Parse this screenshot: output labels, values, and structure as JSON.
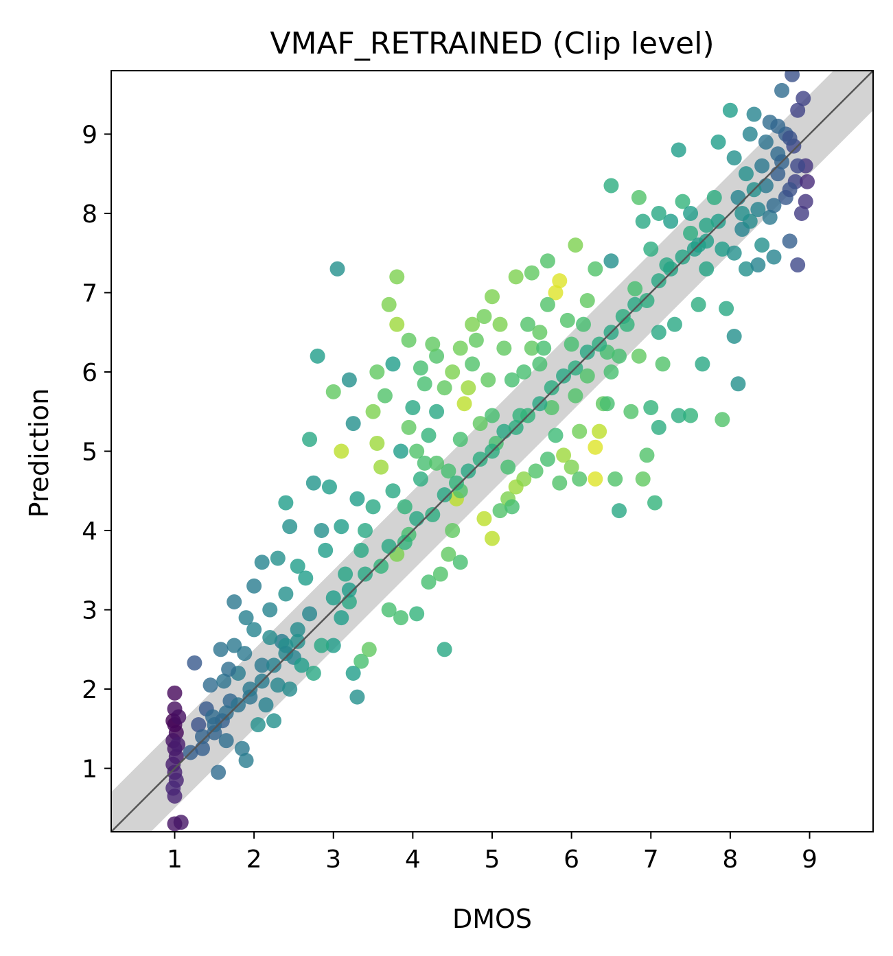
{
  "chart_data": {
    "type": "scatter",
    "title": "VMAF_RETRAINED (Clip level)",
    "xlabel": "DMOS",
    "ylabel": "Prediction",
    "xlim": [
      0.2,
      9.8
    ],
    "ylim": [
      0.2,
      9.8
    ],
    "xticks": [
      1,
      2,
      3,
      4,
      5,
      6,
      7,
      8,
      9
    ],
    "yticks": [
      1,
      2,
      3,
      4,
      5,
      6,
      7,
      8,
      9
    ],
    "xtick_labels": [
      "1",
      "2",
      "3",
      "4",
      "5",
      "6",
      "7",
      "8",
      "9"
    ],
    "ytick_labels": [
      "1",
      "2",
      "3",
      "4",
      "5",
      "6",
      "7",
      "8",
      "9"
    ],
    "grid": false,
    "colormap": "viridis",
    "point_alpha": 0.8,
    "identity_line": {
      "slope": 1,
      "intercept": 0,
      "color": "#555555"
    },
    "confidence_band": {
      "half_width": 0.5,
      "color": "#d3d3d3"
    },
    "points": [
      [
        1.0,
        1.95,
        0.02
      ],
      [
        1.0,
        1.75,
        0.03
      ],
      [
        0.98,
        1.6,
        0.0
      ],
      [
        1.0,
        1.55,
        0.01
      ],
      [
        1.02,
        1.45,
        0.02
      ],
      [
        0.98,
        1.35,
        0.05
      ],
      [
        1.0,
        1.25,
        0.06
      ],
      [
        1.02,
        1.15,
        0.07
      ],
      [
        0.98,
        1.05,
        0.08
      ],
      [
        1.0,
        0.95,
        0.09
      ],
      [
        1.02,
        0.85,
        0.1
      ],
      [
        0.98,
        0.75,
        0.11
      ],
      [
        1.0,
        0.65,
        0.1
      ],
      [
        1.0,
        0.3,
        0.05
      ],
      [
        1.08,
        0.32,
        0.06
      ],
      [
        1.05,
        1.65,
        0.04
      ],
      [
        1.04,
        1.3,
        0.08
      ],
      [
        1.25,
        2.33,
        0.28
      ],
      [
        1.3,
        1.55,
        0.25
      ],
      [
        1.35,
        1.25,
        0.3
      ],
      [
        1.4,
        1.75,
        0.28
      ],
      [
        1.45,
        2.05,
        0.35
      ],
      [
        1.5,
        1.45,
        0.32
      ],
      [
        1.55,
        0.95,
        0.35
      ],
      [
        1.6,
        1.6,
        0.3
      ],
      [
        1.62,
        2.1,
        0.38
      ],
      [
        1.65,
        1.35,
        0.36
      ],
      [
        1.7,
        1.85,
        0.33
      ],
      [
        1.75,
        2.55,
        0.4
      ],
      [
        1.58,
        2.5,
        0.38
      ],
      [
        1.8,
        2.2,
        0.42
      ],
      [
        1.85,
        1.25,
        0.4
      ],
      [
        1.9,
        1.1,
        0.42
      ],
      [
        1.95,
        1.9,
        0.38
      ],
      [
        2.0,
        2.75,
        0.45
      ],
      [
        2.05,
        1.55,
        0.5
      ],
      [
        2.1,
        2.3,
        0.4
      ],
      [
        2.15,
        1.8,
        0.44
      ],
      [
        2.2,
        3.0,
        0.45
      ],
      [
        2.25,
        1.6,
        0.5
      ],
      [
        2.3,
        2.05,
        0.46
      ],
      [
        2.35,
        2.6,
        0.42
      ],
      [
        2.4,
        3.2,
        0.5
      ],
      [
        2.45,
        2.0,
        0.48
      ],
      [
        2.5,
        2.4,
        0.45
      ],
      [
        1.75,
        3.1,
        0.4
      ],
      [
        2.0,
        3.3,
        0.42
      ],
      [
        2.1,
        3.6,
        0.45
      ],
      [
        1.9,
        2.9,
        0.43
      ],
      [
        1.48,
        1.65,
        0.35
      ],
      [
        1.68,
        2.25,
        0.36
      ],
      [
        1.88,
        2.45,
        0.4
      ],
      [
        2.2,
        2.65,
        0.48
      ],
      [
        2.4,
        2.55,
        0.5
      ],
      [
        2.55,
        2.75,
        0.48
      ],
      [
        2.7,
        2.95,
        0.46
      ],
      [
        2.75,
        2.2,
        0.6
      ],
      [
        2.3,
        3.65,
        0.5
      ],
      [
        2.45,
        4.05,
        0.5
      ],
      [
        2.55,
        3.55,
        0.55
      ],
      [
        2.65,
        3.4,
        0.55
      ],
      [
        2.75,
        4.6,
        0.52
      ],
      [
        2.8,
        6.2,
        0.55
      ],
      [
        2.85,
        4.0,
        0.5
      ],
      [
        2.9,
        3.75,
        0.55
      ],
      [
        2.95,
        4.55,
        0.55
      ],
      [
        3.05,
        7.3,
        0.5
      ],
      [
        3.1,
        4.05,
        0.55
      ],
      [
        3.2,
        5.9,
        0.5
      ],
      [
        3.25,
        5.35,
        0.5
      ],
      [
        3.3,
        4.4,
        0.55
      ],
      [
        3.3,
        1.9,
        0.5
      ],
      [
        3.25,
        2.2,
        0.55
      ],
      [
        3.35,
        2.35,
        0.7
      ],
      [
        3.45,
        2.5,
        0.75
      ],
      [
        3.0,
        2.55,
        0.55
      ],
      [
        3.1,
        2.9,
        0.55
      ],
      [
        3.2,
        3.1,
        0.6
      ],
      [
        3.15,
        3.45,
        0.58
      ],
      [
        3.35,
        3.75,
        0.6
      ],
      [
        3.4,
        4.0,
        0.6
      ],
      [
        3.5,
        4.3,
        0.6
      ],
      [
        3.0,
        5.75,
        0.75
      ],
      [
        3.1,
        5.0,
        0.9
      ],
      [
        2.7,
        5.15,
        0.6
      ],
      [
        2.4,
        4.35,
        0.55
      ],
      [
        3.5,
        5.5,
        0.8
      ],
      [
        3.55,
        5.1,
        0.85
      ],
      [
        3.6,
        4.8,
        0.85
      ],
      [
        3.7,
        6.85,
        0.8
      ],
      [
        3.8,
        7.2,
        0.8
      ],
      [
        3.8,
        6.6,
        0.85
      ],
      [
        3.75,
        6.1,
        0.55
      ],
      [
        3.85,
        5.0,
        0.55
      ],
      [
        3.75,
        4.5,
        0.6
      ],
      [
        3.8,
        3.7,
        0.8
      ],
      [
        3.7,
        3.0,
        0.7
      ],
      [
        3.85,
        2.9,
        0.7
      ],
      [
        4.05,
        2.95,
        0.65
      ],
      [
        4.4,
        2.5,
        0.6
      ],
      [
        3.95,
        3.95,
        0.7
      ],
      [
        3.9,
        4.3,
        0.65
      ],
      [
        4.1,
        4.65,
        0.62
      ],
      [
        4.0,
        5.55,
        0.6
      ],
      [
        4.2,
        5.2,
        0.65
      ],
      [
        4.3,
        5.5,
        0.6
      ],
      [
        4.1,
        6.05,
        0.7
      ],
      [
        4.3,
        6.2,
        0.72
      ],
      [
        4.4,
        5.8,
        0.75
      ],
      [
        4.2,
        3.35,
        0.7
      ],
      [
        4.35,
        3.45,
        0.72
      ],
      [
        4.45,
        3.7,
        0.75
      ],
      [
        4.6,
        3.6,
        0.7
      ],
      [
        4.5,
        4.0,
        0.75
      ],
      [
        4.55,
        4.4,
        0.9
      ],
      [
        4.45,
        4.75,
        0.7
      ],
      [
        4.6,
        4.5,
        0.72
      ],
      [
        4.6,
        5.15,
        0.7
      ],
      [
        4.65,
        5.6,
        0.9
      ],
      [
        4.7,
        5.8,
        0.85
      ],
      [
        4.75,
        6.6,
        0.8
      ],
      [
        4.8,
        6.4,
        0.75
      ],
      [
        4.9,
        6.7,
        0.78
      ],
      [
        5.0,
        6.95,
        0.8
      ],
      [
        5.1,
        6.6,
        0.8
      ],
      [
        5.15,
        6.3,
        0.75
      ],
      [
        4.95,
        5.9,
        0.75
      ],
      [
        5.0,
        5.45,
        0.7
      ],
      [
        5.05,
        5.1,
        0.7
      ],
      [
        5.2,
        4.8,
        0.7
      ],
      [
        4.9,
        4.15,
        0.9
      ],
      [
        5.0,
        3.9,
        0.9
      ],
      [
        5.1,
        4.25,
        0.72
      ],
      [
        5.2,
        4.4,
        0.8
      ],
      [
        5.3,
        4.55,
        0.85
      ],
      [
        5.4,
        4.65,
        0.82
      ],
      [
        5.35,
        5.45,
        0.65
      ],
      [
        5.4,
        6.0,
        0.7
      ],
      [
        5.45,
        6.6,
        0.72
      ],
      [
        5.6,
        6.5,
        0.75
      ],
      [
        5.5,
        7.25,
        0.75
      ],
      [
        5.3,
        7.2,
        0.8
      ],
      [
        5.7,
        7.4,
        0.72
      ],
      [
        5.8,
        7.0,
        0.95
      ],
      [
        5.85,
        7.15,
        0.95
      ],
      [
        5.7,
        6.85,
        0.72
      ],
      [
        5.6,
        6.1,
        0.7
      ],
      [
        5.75,
        5.55,
        0.72
      ],
      [
        5.8,
        5.2,
        0.68
      ],
      [
        5.85,
        4.6,
        0.72
      ],
      [
        5.9,
        4.95,
        0.85
      ],
      [
        6.0,
        4.8,
        0.8
      ],
      [
        6.1,
        5.25,
        0.78
      ],
      [
        6.05,
        5.7,
        0.72
      ],
      [
        6.0,
        6.35,
        0.7
      ],
      [
        6.05,
        7.6,
        0.8
      ],
      [
        6.2,
        6.9,
        0.75
      ],
      [
        6.3,
        7.3,
        0.72
      ],
      [
        6.3,
        5.05,
        0.95
      ],
      [
        6.3,
        4.65,
        0.95
      ],
      [
        6.35,
        5.25,
        0.9
      ],
      [
        6.4,
        5.6,
        0.75
      ],
      [
        6.45,
        6.25,
        0.7
      ],
      [
        6.5,
        6.0,
        0.7
      ],
      [
        6.5,
        8.35,
        0.62
      ],
      [
        6.5,
        7.4,
        0.5
      ],
      [
        6.55,
        4.65,
        0.72
      ],
      [
        6.6,
        4.25,
        0.6
      ],
      [
        6.7,
        6.6,
        0.65
      ],
      [
        6.8,
        7.05,
        0.7
      ],
      [
        6.85,
        6.2,
        0.75
      ],
      [
        6.9,
        4.65,
        0.75
      ],
      [
        6.95,
        4.95,
        0.72
      ],
      [
        7.0,
        5.55,
        0.65
      ],
      [
        7.05,
        4.35,
        0.65
      ],
      [
        7.1,
        5.3,
        0.62
      ],
      [
        6.85,
        8.2,
        0.72
      ],
      [
        6.9,
        7.9,
        0.6
      ],
      [
        7.0,
        7.55,
        0.62
      ],
      [
        7.1,
        6.5,
        0.6
      ],
      [
        7.15,
        6.1,
        0.72
      ],
      [
        7.2,
        7.35,
        0.6
      ],
      [
        7.3,
        6.6,
        0.6
      ],
      [
        7.35,
        8.8,
        0.55
      ],
      [
        7.4,
        8.15,
        0.65
      ],
      [
        7.5,
        7.75,
        0.62
      ],
      [
        7.6,
        6.85,
        0.62
      ],
      [
        7.65,
        6.1,
        0.6
      ],
      [
        7.7,
        7.3,
        0.58
      ],
      [
        7.8,
        8.2,
        0.62
      ],
      [
        7.85,
        8.9,
        0.55
      ],
      [
        7.9,
        5.4,
        0.72
      ],
      [
        7.95,
        6.8,
        0.6
      ],
      [
        8.05,
        6.45,
        0.5
      ],
      [
        8.1,
        5.85,
        0.5
      ],
      [
        7.5,
        5.45,
        0.65
      ],
      [
        7.35,
        5.45,
        0.62
      ],
      [
        8.0,
        9.3,
        0.55
      ],
      [
        8.05,
        8.7,
        0.5
      ],
      [
        8.1,
        8.2,
        0.45
      ],
      [
        8.15,
        7.8,
        0.45
      ],
      [
        8.2,
        8.5,
        0.5
      ],
      [
        8.2,
        7.3,
        0.5
      ],
      [
        8.25,
        9.0,
        0.45
      ],
      [
        8.3,
        9.25,
        0.45
      ],
      [
        8.35,
        8.05,
        0.45
      ],
      [
        8.4,
        7.6,
        0.5
      ],
      [
        8.45,
        8.35,
        0.4
      ],
      [
        8.5,
        9.15,
        0.35
      ],
      [
        8.5,
        7.95,
        0.4
      ],
      [
        8.55,
        7.45,
        0.45
      ],
      [
        8.6,
        8.75,
        0.35
      ],
      [
        8.6,
        8.5,
        0.3
      ],
      [
        8.65,
        9.55,
        0.35
      ],
      [
        8.7,
        9.0,
        0.3
      ],
      [
        8.7,
        8.2,
        0.28
      ],
      [
        8.75,
        7.65,
        0.3
      ],
      [
        8.78,
        9.75,
        0.25
      ],
      [
        8.8,
        8.85,
        0.22
      ],
      [
        8.82,
        8.4,
        0.2
      ],
      [
        8.85,
        9.3,
        0.2
      ],
      [
        8.85,
        7.35,
        0.22
      ],
      [
        8.9,
        8.0,
        0.18
      ],
      [
        8.92,
        9.45,
        0.2
      ],
      [
        8.95,
        8.6,
        0.15
      ],
      [
        8.95,
        8.15,
        0.15
      ],
      [
        8.97,
        8.4,
        0.12
      ],
      [
        8.3,
        8.3,
        0.5
      ],
      [
        8.35,
        7.35,
        0.45
      ],
      [
        8.45,
        8.9,
        0.38
      ],
      [
        8.55,
        8.1,
        0.35
      ],
      [
        8.65,
        8.65,
        0.32
      ],
      [
        8.75,
        8.95,
        0.25
      ],
      [
        8.6,
        9.1,
        0.33
      ],
      [
        8.4,
        8.6,
        0.4
      ],
      [
        8.25,
        7.9,
        0.48
      ],
      [
        8.15,
        8.0,
        0.5
      ],
      [
        8.85,
        8.6,
        0.22
      ],
      [
        8.75,
        8.3,
        0.25
      ],
      [
        7.9,
        7.55,
        0.55
      ],
      [
        8.05,
        7.5,
        0.5
      ],
      [
        7.85,
        7.9,
        0.55
      ],
      [
        7.6,
        7.6,
        0.55
      ],
      [
        7.7,
        7.85,
        0.58
      ],
      [
        7.5,
        8.0,
        0.55
      ],
      [
        7.25,
        7.9,
        0.55
      ],
      [
        7.1,
        8.0,
        0.6
      ],
      [
        2.6,
        2.3,
        0.55
      ],
      [
        2.85,
        2.55,
        0.6
      ],
      [
        3.0,
        3.15,
        0.55
      ],
      [
        3.2,
        3.25,
        0.55
      ],
      [
        3.4,
        3.45,
        0.6
      ],
      [
        3.6,
        3.55,
        0.65
      ],
      [
        3.7,
        3.8,
        0.6
      ],
      [
        3.9,
        3.85,
        0.65
      ],
      [
        4.05,
        4.15,
        0.6
      ],
      [
        4.25,
        4.2,
        0.62
      ],
      [
        4.4,
        4.45,
        0.6
      ],
      [
        4.55,
        4.6,
        0.65
      ],
      [
        4.7,
        4.75,
        0.6
      ],
      [
        4.85,
        4.9,
        0.62
      ],
      [
        5.0,
        5.0,
        0.62
      ],
      [
        5.15,
        5.25,
        0.6
      ],
      [
        5.3,
        5.3,
        0.62
      ],
      [
        5.45,
        5.45,
        0.65
      ],
      [
        5.6,
        5.6,
        0.6
      ],
      [
        5.75,
        5.8,
        0.62
      ],
      [
        5.9,
        5.95,
        0.6
      ],
      [
        6.05,
        6.05,
        0.62
      ],
      [
        6.2,
        6.25,
        0.6
      ],
      [
        6.35,
        6.35,
        0.62
      ],
      [
        6.5,
        6.5,
        0.6
      ],
      [
        6.65,
        6.7,
        0.62
      ],
      [
        6.8,
        6.85,
        0.6
      ],
      [
        6.95,
        6.9,
        0.62
      ],
      [
        7.1,
        7.15,
        0.6
      ],
      [
        7.25,
        7.3,
        0.58
      ],
      [
        7.4,
        7.45,
        0.58
      ],
      [
        7.55,
        7.55,
        0.56
      ],
      [
        7.7,
        7.65,
        0.56
      ],
      [
        1.2,
        1.2,
        0.3
      ],
      [
        1.35,
        1.4,
        0.32
      ],
      [
        1.5,
        1.55,
        0.34
      ],
      [
        1.65,
        1.7,
        0.36
      ],
      [
        1.8,
        1.8,
        0.38
      ],
      [
        1.95,
        2.0,
        0.4
      ],
      [
        2.1,
        2.1,
        0.42
      ],
      [
        2.25,
        2.3,
        0.44
      ],
      [
        2.4,
        2.45,
        0.46
      ],
      [
        2.55,
        2.6,
        0.5
      ],
      [
        3.95,
        5.3,
        0.75
      ],
      [
        4.15,
        5.85,
        0.7
      ],
      [
        4.25,
        6.35,
        0.75
      ],
      [
        4.5,
        6.0,
        0.8
      ],
      [
        4.6,
        6.3,
        0.78
      ],
      [
        4.75,
        6.1,
        0.72
      ],
      [
        4.85,
        5.35,
        0.75
      ],
      [
        5.25,
        5.9,
        0.7
      ],
      [
        5.5,
        6.3,
        0.75
      ],
      [
        5.65,
        6.3,
        0.7
      ],
      [
        5.95,
        6.65,
        0.72
      ],
      [
        6.15,
        6.6,
        0.7
      ],
      [
        6.6,
        6.2,
        0.7
      ],
      [
        6.75,
        5.5,
        0.72
      ],
      [
        6.45,
        5.6,
        0.7
      ],
      [
        6.2,
        5.95,
        0.72
      ],
      [
        5.25,
        4.3,
        0.7
      ],
      [
        5.55,
        4.75,
        0.72
      ],
      [
        5.7,
        4.9,
        0.7
      ],
      [
        6.1,
        4.65,
        0.72
      ],
      [
        3.65,
        5.7,
        0.72
      ],
      [
        3.55,
        6.0,
        0.75
      ],
      [
        3.95,
        6.4,
        0.75
      ],
      [
        4.05,
        5.0,
        0.72
      ],
      [
        4.15,
        4.85,
        0.7
      ],
      [
        4.3,
        4.85,
        0.72
      ]
    ]
  }
}
